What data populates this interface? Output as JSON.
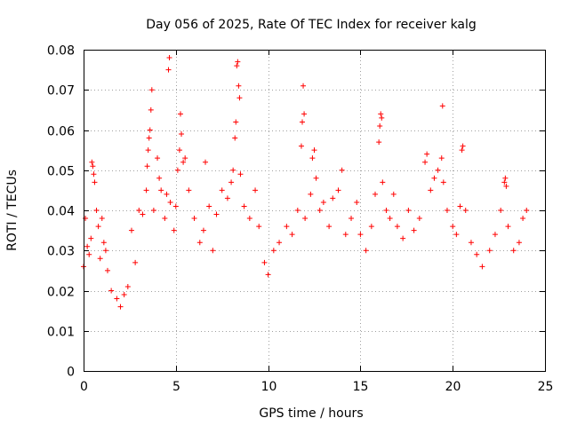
{
  "chart_data": {
    "type": "scatter",
    "title": "Day 056 of 2025, Rate Of TEC Index for receiver kalg",
    "xlabel": "GPS time / hours",
    "ylabel": "ROTI / TECUs",
    "xlim": [
      0,
      25
    ],
    "ylim": [
      0,
      0.08
    ],
    "x_ticks": [
      0,
      5,
      10,
      15,
      20,
      25
    ],
    "x_tick_labels": [
      "0",
      "5",
      "10",
      "15",
      "20",
      "25"
    ],
    "y_ticks": [
      0,
      0.01,
      0.02,
      0.03,
      0.04,
      0.05,
      0.06,
      0.07,
      0.08
    ],
    "y_tick_labels": [
      "0",
      "0.01",
      "0.02",
      "0.03",
      "0.04",
      "0.05",
      "0.06",
      "0.07",
      "0.08"
    ],
    "grid": true,
    "marker": "+",
    "color": "#ff0000",
    "series": [
      {
        "name": "ROTI",
        "points": [
          [
            0.0,
            0.026
          ],
          [
            0.1,
            0.038
          ],
          [
            0.2,
            0.031
          ],
          [
            0.3,
            0.029
          ],
          [
            0.4,
            0.033
          ],
          [
            0.45,
            0.052
          ],
          [
            0.5,
            0.051
          ],
          [
            0.55,
            0.049
          ],
          [
            0.6,
            0.047
          ],
          [
            0.7,
            0.04
          ],
          [
            0.8,
            0.036
          ],
          [
            0.9,
            0.028
          ],
          [
            1.0,
            0.038
          ],
          [
            1.1,
            0.032
          ],
          [
            1.2,
            0.03
          ],
          [
            1.3,
            0.025
          ],
          [
            1.5,
            0.02
          ],
          [
            1.8,
            0.018
          ],
          [
            2.0,
            0.016
          ],
          [
            2.2,
            0.019
          ],
          [
            2.4,
            0.021
          ],
          [
            2.6,
            0.035
          ],
          [
            2.8,
            0.027
          ],
          [
            3.0,
            0.04
          ],
          [
            3.2,
            0.039
          ],
          [
            3.4,
            0.045
          ],
          [
            3.45,
            0.051
          ],
          [
            3.5,
            0.055
          ],
          [
            3.55,
            0.058
          ],
          [
            3.6,
            0.06
          ],
          [
            3.65,
            0.065
          ],
          [
            3.7,
            0.07
          ],
          [
            3.8,
            0.04
          ],
          [
            4.0,
            0.053
          ],
          [
            4.1,
            0.048
          ],
          [
            4.2,
            0.045
          ],
          [
            4.4,
            0.038
          ],
          [
            4.5,
            0.044
          ],
          [
            4.6,
            0.075
          ],
          [
            4.65,
            0.078
          ],
          [
            4.7,
            0.042
          ],
          [
            4.9,
            0.035
          ],
          [
            5.0,
            0.041
          ],
          [
            5.1,
            0.05
          ],
          [
            5.2,
            0.055
          ],
          [
            5.25,
            0.064
          ],
          [
            5.3,
            0.059
          ],
          [
            5.4,
            0.052
          ],
          [
            5.5,
            0.053
          ],
          [
            5.7,
            0.045
          ],
          [
            6.0,
            0.038
          ],
          [
            6.3,
            0.032
          ],
          [
            6.5,
            0.035
          ],
          [
            6.6,
            0.052
          ],
          [
            6.8,
            0.041
          ],
          [
            7.0,
            0.03
          ],
          [
            7.2,
            0.039
          ],
          [
            7.5,
            0.045
          ],
          [
            7.8,
            0.043
          ],
          [
            8.0,
            0.047
          ],
          [
            8.1,
            0.05
          ],
          [
            8.2,
            0.058
          ],
          [
            8.25,
            0.062
          ],
          [
            8.3,
            0.076
          ],
          [
            8.35,
            0.077
          ],
          [
            8.4,
            0.071
          ],
          [
            8.45,
            0.068
          ],
          [
            8.5,
            0.049
          ],
          [
            8.7,
            0.041
          ],
          [
            9.0,
            0.038
          ],
          [
            9.3,
            0.045
          ],
          [
            9.5,
            0.036
          ],
          [
            9.8,
            0.027
          ],
          [
            10.0,
            0.024
          ],
          [
            10.3,
            0.03
          ],
          [
            10.6,
            0.032
          ],
          [
            11.0,
            0.036
          ],
          [
            11.3,
            0.034
          ],
          [
            11.6,
            0.04
          ],
          [
            11.8,
            0.056
          ],
          [
            11.85,
            0.062
          ],
          [
            11.9,
            0.071
          ],
          [
            11.95,
            0.064
          ],
          [
            12.0,
            0.038
          ],
          [
            12.3,
            0.044
          ],
          [
            12.4,
            0.053
          ],
          [
            12.5,
            0.055
          ],
          [
            12.6,
            0.048
          ],
          [
            12.8,
            0.04
          ],
          [
            13.0,
            0.042
          ],
          [
            13.3,
            0.036
          ],
          [
            13.5,
            0.043
          ],
          [
            13.8,
            0.045
          ],
          [
            14.0,
            0.05
          ],
          [
            14.2,
            0.034
          ],
          [
            14.5,
            0.038
          ],
          [
            14.8,
            0.042
          ],
          [
            15.0,
            0.034
          ],
          [
            15.3,
            0.03
          ],
          [
            15.6,
            0.036
          ],
          [
            15.8,
            0.044
          ],
          [
            16.0,
            0.057
          ],
          [
            16.05,
            0.061
          ],
          [
            16.1,
            0.064
          ],
          [
            16.15,
            0.063
          ],
          [
            16.2,
            0.047
          ],
          [
            16.4,
            0.04
          ],
          [
            16.6,
            0.038
          ],
          [
            16.8,
            0.044
          ],
          [
            17.0,
            0.036
          ],
          [
            17.3,
            0.033
          ],
          [
            17.6,
            0.04
          ],
          [
            17.9,
            0.035
          ],
          [
            18.2,
            0.038
          ],
          [
            18.5,
            0.052
          ],
          [
            18.6,
            0.054
          ],
          [
            18.8,
            0.045
          ],
          [
            19.0,
            0.048
          ],
          [
            19.2,
            0.05
          ],
          [
            19.4,
            0.053
          ],
          [
            19.45,
            0.066
          ],
          [
            19.5,
            0.047
          ],
          [
            19.7,
            0.04
          ],
          [
            20.0,
            0.036
          ],
          [
            20.2,
            0.034
          ],
          [
            20.4,
            0.041
          ],
          [
            20.5,
            0.055
          ],
          [
            20.55,
            0.056
          ],
          [
            20.7,
            0.04
          ],
          [
            21.0,
            0.032
          ],
          [
            21.3,
            0.029
          ],
          [
            21.6,
            0.026
          ],
          [
            22.0,
            0.03
          ],
          [
            22.3,
            0.034
          ],
          [
            22.6,
            0.04
          ],
          [
            22.8,
            0.047
          ],
          [
            22.85,
            0.048
          ],
          [
            22.9,
            0.046
          ],
          [
            23.0,
            0.036
          ],
          [
            23.3,
            0.03
          ],
          [
            23.6,
            0.032
          ],
          [
            23.8,
            0.038
          ],
          [
            24.0,
            0.04
          ]
        ]
      }
    ]
  }
}
